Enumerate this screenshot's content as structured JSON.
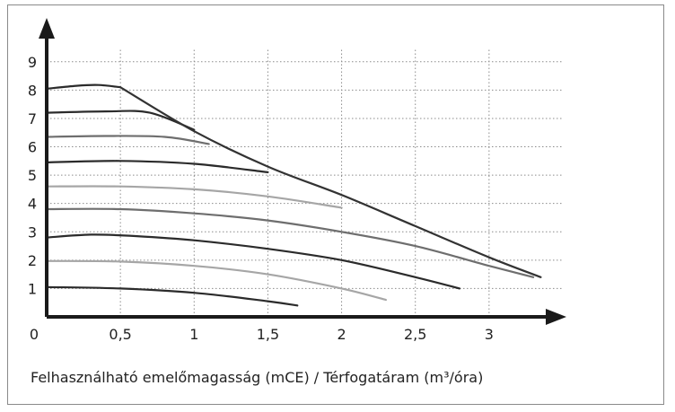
{
  "caption": "Felhasználható emelőmagasság (mCE) / Térfogatáram (m³/óra)",
  "chart_data": {
    "type": "line",
    "title": "",
    "xlabel": "Térfogatáram (m³/óra)",
    "ylabel": "Felhasználható emelőmagasság (mCE)",
    "xlim": [
      0,
      3.5
    ],
    "ylim": [
      0,
      9.5
    ],
    "grid": true,
    "origin_label": "0",
    "x_ticks": [
      "0,5",
      "1",
      "1,5",
      "2",
      "2,5",
      "3"
    ],
    "x_tick_values": [
      0.5,
      1,
      1.5,
      2,
      2.5,
      3
    ],
    "y_ticks": [
      "1",
      "2",
      "3",
      "4",
      "5",
      "6",
      "7",
      "8",
      "9"
    ],
    "y_tick_values": [
      1,
      2,
      3,
      4,
      5,
      6,
      7,
      8,
      9
    ],
    "colors": {
      "dark": "#2b2b2b",
      "mid": "#6e6e6e",
      "light": "#a6a6a6",
      "envelope": "#333333"
    },
    "series": [
      {
        "color": "#2b2b2b",
        "x": [
          0,
          0.5,
          1.0,
          1.5,
          1.7
        ],
        "y": [
          1.05,
          1.0,
          0.85,
          0.55,
          0.4
        ]
      },
      {
        "color": "#a6a6a6",
        "x": [
          0,
          0.5,
          1.0,
          1.5,
          2.0,
          2.3
        ],
        "y": [
          1.97,
          1.95,
          1.8,
          1.5,
          1.0,
          0.6
        ]
      },
      {
        "color": "#2b2b2b",
        "x": [
          0,
          0.3,
          0.6,
          1.0,
          1.5,
          2.0,
          2.5,
          2.8
        ],
        "y": [
          2.8,
          2.9,
          2.85,
          2.7,
          2.4,
          2.0,
          1.4,
          1.0
        ]
      },
      {
        "color": "#6e6e6e",
        "x": [
          0,
          0.5,
          1.0,
          1.5,
          2.0,
          2.5,
          3.0,
          3.3
        ],
        "y": [
          3.8,
          3.8,
          3.65,
          3.4,
          3.0,
          2.5,
          1.8,
          1.4
        ]
      },
      {
        "color": "#a6a6a6",
        "x": [
          0,
          0.5,
          1.0,
          1.5,
          2.0
        ],
        "y": [
          4.6,
          4.6,
          4.5,
          4.25,
          3.85
        ]
      },
      {
        "color": "#2b2b2b",
        "x": [
          0,
          0.5,
          1.0,
          1.5
        ],
        "y": [
          5.45,
          5.5,
          5.4,
          5.1
        ]
      },
      {
        "color": "#6e6e6e",
        "x": [
          0,
          0.4,
          0.8,
          1.1
        ],
        "y": [
          6.35,
          6.38,
          6.35,
          6.1
        ]
      },
      {
        "color": "#2b2b2b",
        "x": [
          0,
          0.4,
          0.7,
          1.0
        ],
        "y": [
          7.2,
          7.25,
          7.2,
          6.6
        ]
      },
      {
        "color": "#2b2b2b",
        "x": [
          0,
          0.2,
          0.35,
          0.5
        ],
        "y": [
          8.05,
          8.15,
          8.18,
          8.1
        ]
      },
      {
        "color": "#333333",
        "x": [
          0.5,
          1.0,
          1.5,
          2.0,
          2.5,
          3.0,
          3.35
        ],
        "y": [
          8.1,
          6.55,
          5.3,
          4.3,
          3.2,
          2.1,
          1.4
        ]
      }
    ]
  }
}
